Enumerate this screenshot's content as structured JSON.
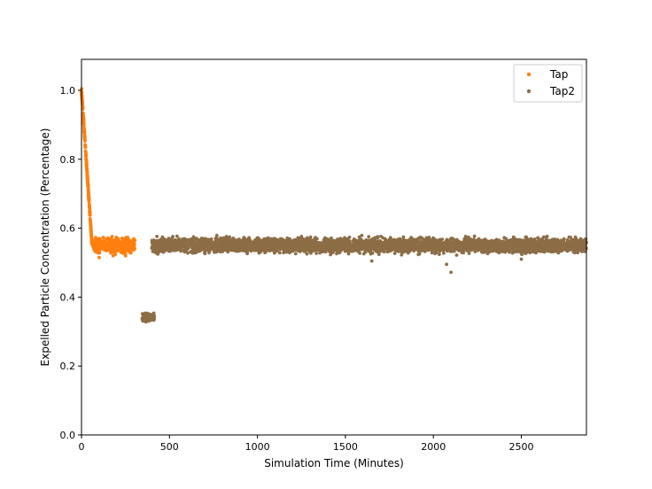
{
  "chart_data": {
    "type": "scatter",
    "title": "",
    "xlabel": "Simulation Time (Minutes)",
    "ylabel": "Expelled Particle Concentration (Percentage)",
    "xlim": [
      0,
      2870
    ],
    "ylim": [
      0.0,
      1.09
    ],
    "xticks": [
      0,
      500,
      1000,
      1500,
      2000,
      2500
    ],
    "yticks": [
      0.0,
      0.2,
      0.4,
      0.6,
      0.8,
      1.0
    ],
    "xtick_labels": [
      "0",
      "500",
      "1000",
      "1500",
      "2000",
      "2500"
    ],
    "ytick_labels": [
      "0.0",
      "0.2",
      "0.4",
      "0.6",
      "0.8",
      "1.0"
    ],
    "grid": false,
    "legend_position": "top-right",
    "series": [
      {
        "name": "Tap",
        "color": "#ff7f0e",
        "segments": [
          {
            "shape": "decay",
            "x_start": 0,
            "x_end": 60,
            "y_start": 1.0,
            "y_end": 0.55,
            "spread": 0.03
          },
          {
            "shape": "band",
            "x_start": 60,
            "x_end": 305,
            "y_center": 0.55,
            "spread": 0.03
          }
        ],
        "outliers": [
          [
            100,
            0.515
          ],
          [
            180,
            0.52
          ],
          [
            250,
            0.52
          ]
        ]
      },
      {
        "name": "Tap2",
        "color": "#8c6d46",
        "segments": [
          {
            "shape": "band",
            "x_start": 345,
            "x_end": 415,
            "y_center": 0.34,
            "spread": 0.02
          },
          {
            "shape": "band",
            "x_start": 400,
            "x_end": 2870,
            "y_center": 0.55,
            "spread": 0.03
          }
        ],
        "outliers": [
          [
            2075,
            0.495
          ],
          [
            2100,
            0.472
          ],
          [
            1650,
            0.505
          ],
          [
            2500,
            0.51
          ]
        ]
      }
    ]
  }
}
